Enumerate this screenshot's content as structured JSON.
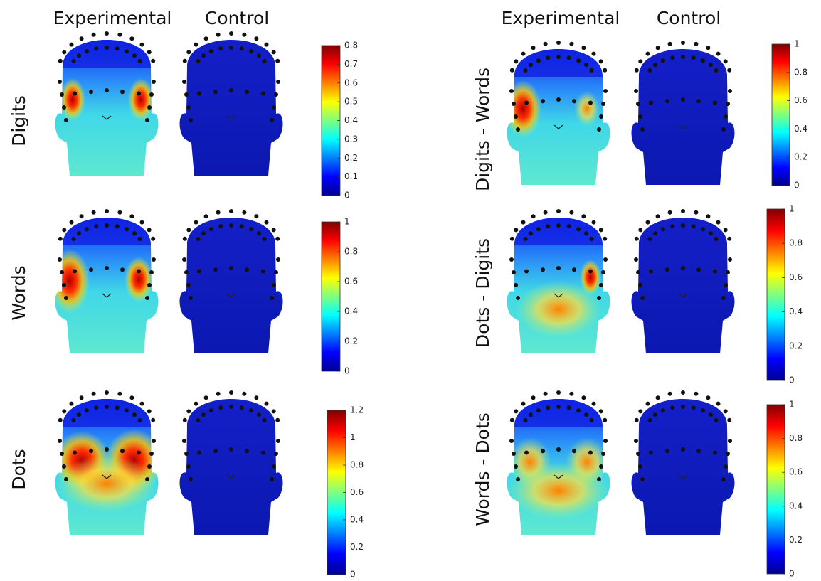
{
  "columns_left": [
    "Experimental",
    "Control"
  ],
  "columns_right": [
    "Experimental",
    "Control"
  ],
  "panels": [
    {
      "label": "Digits",
      "colorbar": {
        "lim": [
          0,
          0.8
        ],
        "ticks": [
          0,
          0.1,
          0.2,
          0.3,
          0.4,
          0.5,
          0.6,
          0.7,
          0.8
        ]
      }
    },
    {
      "label": "Words",
      "colorbar": {
        "lim": [
          0,
          1
        ],
        "ticks": [
          0,
          0.2,
          0.4,
          0.6,
          0.8,
          1
        ]
      }
    },
    {
      "label": "Dots",
      "colorbar": {
        "lim": [
          0,
          1.2
        ],
        "ticks": [
          0,
          0.2,
          0.4,
          0.6,
          0.8,
          1,
          1.2
        ]
      }
    },
    {
      "label": "Digits - Words",
      "colorbar": {
        "lim": [
          0,
          1
        ],
        "ticks": [
          0,
          0.2,
          0.4,
          0.6,
          0.8,
          1
        ]
      }
    },
    {
      "label": "Dots - Digits",
      "colorbar": {
        "lim": [
          0,
          1
        ],
        "ticks": [
          0,
          0.2,
          0.4,
          0.6,
          0.8,
          1
        ]
      }
    },
    {
      "label": "Words - Dots",
      "colorbar": {
        "lim": [
          0,
          1
        ],
        "ticks": [
          0,
          0.2,
          0.4,
          0.6,
          0.8,
          1
        ]
      }
    }
  ]
}
